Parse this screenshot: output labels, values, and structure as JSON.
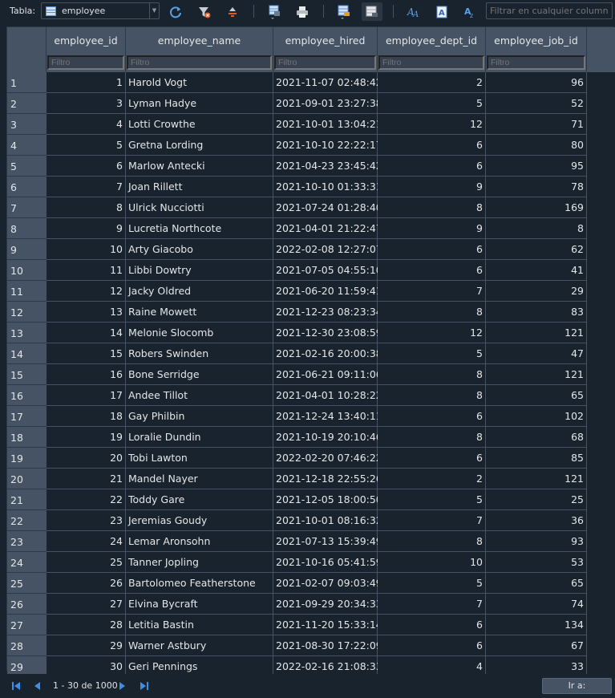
{
  "toolbar": {
    "table_label": "Tabla:",
    "table_name": "employee",
    "filter_all_placeholder": "Filtrar en cualquier columna"
  },
  "icons": [
    "refresh-icon",
    "clear-filters-icon",
    "clear-sort-icon",
    "save-table-icon",
    "print-icon",
    "insert-record-icon",
    "delete-record-icon",
    "find-icon",
    "find-replace-icon",
    "set-encoding-icon"
  ],
  "columns": [
    {
      "name": "employee_id",
      "filter": "Filtro"
    },
    {
      "name": "employee_name",
      "filter": "Filtro"
    },
    {
      "name": "employee_hired",
      "filter": "Filtro"
    },
    {
      "name": "employee_dept_id",
      "filter": "Filtro"
    },
    {
      "name": "employee_job_id",
      "filter": "Filtro"
    }
  ],
  "rows": [
    {
      "n": "1",
      "id": "1",
      "name": "Harold Vogt",
      "hired": "2021-11-07 02:48:42",
      "dept": "2",
      "job": "96"
    },
    {
      "n": "2",
      "id": "3",
      "name": "Lyman Hadye",
      "hired": "2021-09-01 23:27:38",
      "dept": "5",
      "job": "52"
    },
    {
      "n": "3",
      "id": "4",
      "name": "Lotti Crowthe",
      "hired": "2021-10-01 13:04:21",
      "dept": "12",
      "job": "71"
    },
    {
      "n": "4",
      "id": "5",
      "name": "Gretna Lording",
      "hired": "2021-10-10 22:22:17",
      "dept": "6",
      "job": "80"
    },
    {
      "n": "5",
      "id": "6",
      "name": "Marlow Antecki",
      "hired": "2021-04-23 23:45:42",
      "dept": "6",
      "job": "95"
    },
    {
      "n": "6",
      "id": "7",
      "name": "Joan Rillett",
      "hired": "2021-10-10 01:33:31",
      "dept": "9",
      "job": "78"
    },
    {
      "n": "7",
      "id": "8",
      "name": "Ulrick Nucciotti",
      "hired": "2021-07-24 01:28:40",
      "dept": "8",
      "job": "169"
    },
    {
      "n": "8",
      "id": "9",
      "name": "Lucretia Northcote",
      "hired": "2021-04-01 21:22:47",
      "dept": "9",
      "job": "8"
    },
    {
      "n": "9",
      "id": "10",
      "name": "Arty Giacobo",
      "hired": "2022-02-08 12:27:07",
      "dept": "6",
      "job": "62"
    },
    {
      "n": "10",
      "id": "11",
      "name": "Libbi Dowtry",
      "hired": "2021-07-05 04:55:10",
      "dept": "6",
      "job": "41"
    },
    {
      "n": "11",
      "id": "12",
      "name": "Jacky Oldred",
      "hired": "2021-06-20 11:59:41",
      "dept": "7",
      "job": "29"
    },
    {
      "n": "12",
      "id": "13",
      "name": "Raine Mowett",
      "hired": "2021-12-23 08:23:34",
      "dept": "8",
      "job": "83"
    },
    {
      "n": "13",
      "id": "14",
      "name": "Melonie Slocomb",
      "hired": "2021-12-30 23:08:59",
      "dept": "12",
      "job": "121"
    },
    {
      "n": "14",
      "id": "15",
      "name": "Robers Swinden",
      "hired": "2021-02-16 20:00:38",
      "dept": "5",
      "job": "47"
    },
    {
      "n": "15",
      "id": "16",
      "name": "Bone Serridge",
      "hired": "2021-06-21 09:11:06",
      "dept": "8",
      "job": "121"
    },
    {
      "n": "16",
      "id": "17",
      "name": "Andee Tillot",
      "hired": "2021-04-01 10:28:22",
      "dept": "8",
      "job": "65"
    },
    {
      "n": "17",
      "id": "18",
      "name": "Gay Philbin",
      "hired": "2021-12-24 13:40:11",
      "dept": "6",
      "job": "102"
    },
    {
      "n": "18",
      "id": "19",
      "name": "Loralie Dundin",
      "hired": "2021-10-19 20:10:46",
      "dept": "8",
      "job": "68"
    },
    {
      "n": "19",
      "id": "20",
      "name": "Tobi Lawton",
      "hired": "2022-02-20 07:46:22",
      "dept": "6",
      "job": "85"
    },
    {
      "n": "20",
      "id": "21",
      "name": "Mandel Nayer",
      "hired": "2021-12-18 22:55:26",
      "dept": "2",
      "job": "121"
    },
    {
      "n": "21",
      "id": "22",
      "name": "Toddy Gare",
      "hired": "2021-12-05 18:00:50",
      "dept": "5",
      "job": "25"
    },
    {
      "n": "22",
      "id": "23",
      "name": "Jeremias Goudy",
      "hired": "2021-10-01 08:16:32",
      "dept": "7",
      "job": "36"
    },
    {
      "n": "23",
      "id": "24",
      "name": "Lemar Aronsohn",
      "hired": "2021-07-13 15:39:49",
      "dept": "8",
      "job": "93"
    },
    {
      "n": "24",
      "id": "25",
      "name": "Tanner Jopling",
      "hired": "2021-10-16 05:41:59",
      "dept": "10",
      "job": "53"
    },
    {
      "n": "25",
      "id": "26",
      "name": "Bartolomeo Featherstone",
      "hired": "2021-02-07 09:03:49",
      "dept": "5",
      "job": "65"
    },
    {
      "n": "26",
      "id": "27",
      "name": "Elvina Bycraft",
      "hired": "2021-09-29 20:34:33",
      "dept": "7",
      "job": "74"
    },
    {
      "n": "27",
      "id": "28",
      "name": "Letitia Bastin",
      "hired": "2021-11-20 15:33:14",
      "dept": "6",
      "job": "134"
    },
    {
      "n": "28",
      "id": "29",
      "name": "Warner Astbury",
      "hired": "2021-08-30 17:22:09",
      "dept": "6",
      "job": "67"
    },
    {
      "n": "29",
      "id": "30",
      "name": "Geri Pennings",
      "hired": "2022-02-16 21:08:33",
      "dept": "4",
      "job": "33"
    }
  ],
  "status": {
    "page_info": "1 - 30 de 1000",
    "goto_label": "Ir a:"
  }
}
